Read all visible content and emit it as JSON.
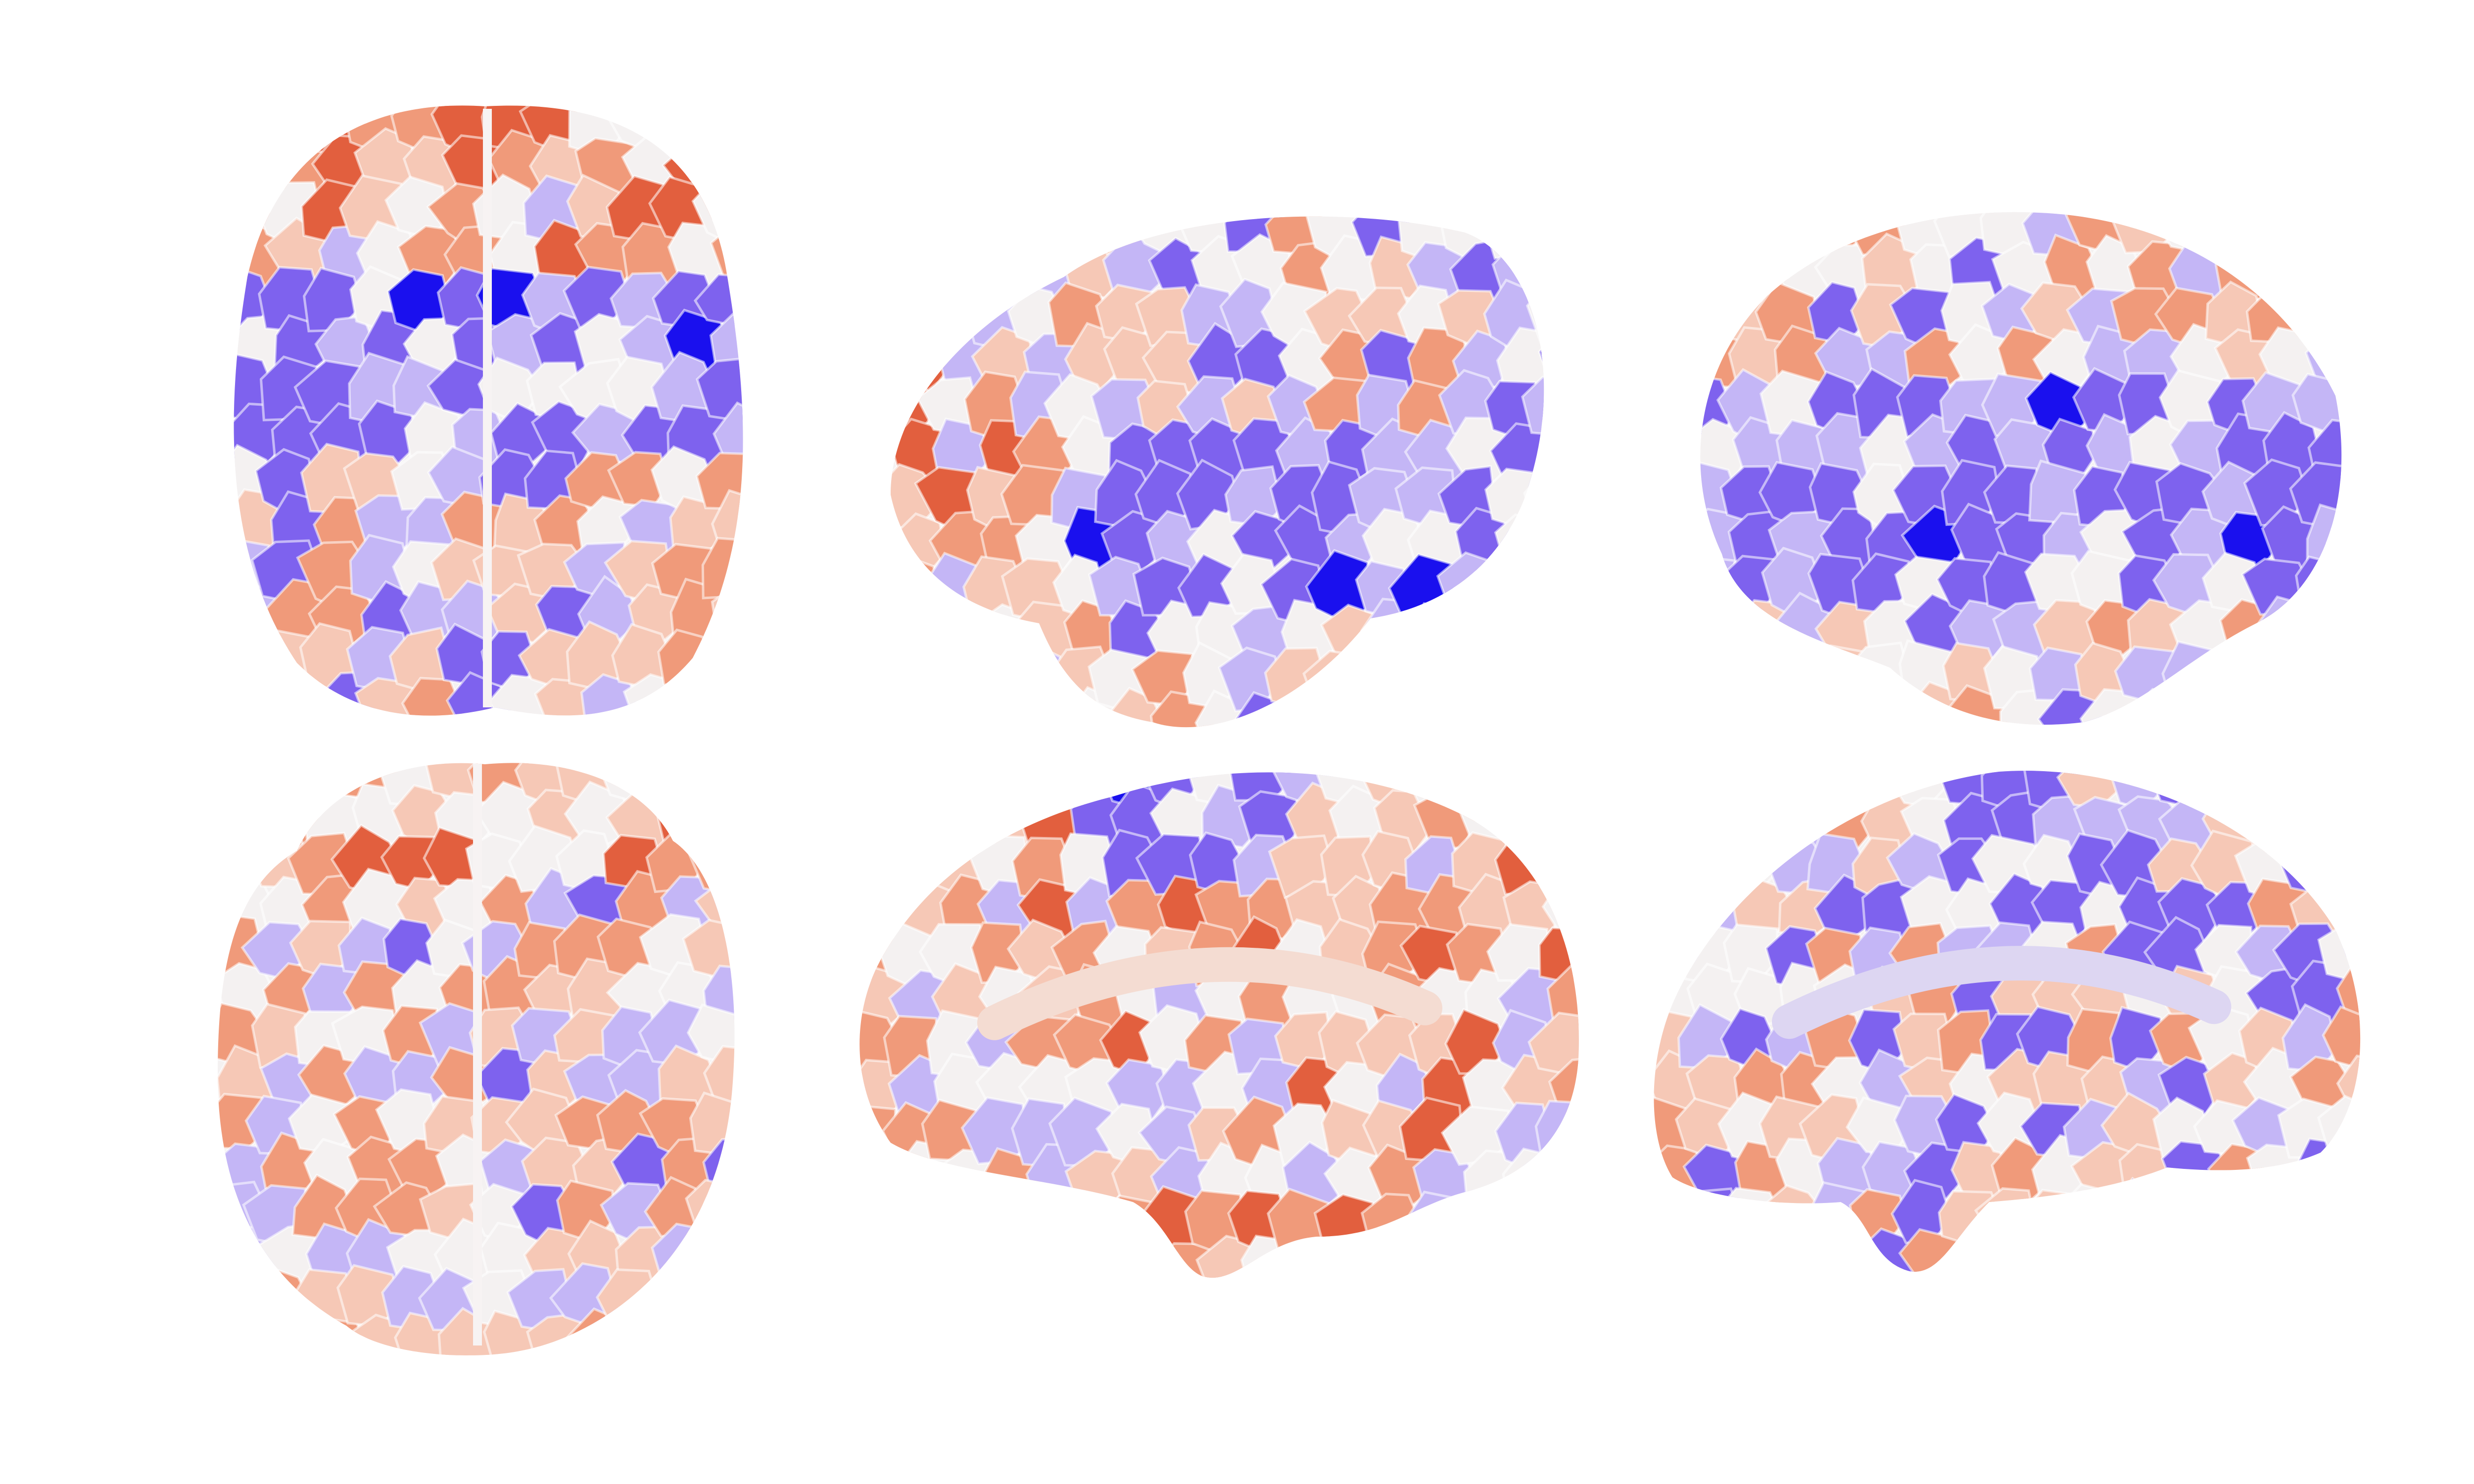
{
  "figure": {
    "background": "#ffffff",
    "colormap": {
      "negative_strong": "#1a10ee",
      "negative_mid": "#7e62ee",
      "negative_light": "#c4b6f6",
      "neutral": "#f4f1f1",
      "positive_light": "#f6c8b6",
      "positive_mid": "#f09a7a",
      "positive_strong": "#e25f3e"
    },
    "views": [
      {
        "name": "dorsal",
        "value_seed": 11,
        "shape": "top"
      },
      {
        "name": "left-lateral",
        "value_seed": 23,
        "shape": "lateral-left"
      },
      {
        "name": "right-lateral",
        "value_seed": 37,
        "shape": "lateral-right"
      },
      {
        "name": "ventral",
        "value_seed": 41,
        "shape": "bottom"
      },
      {
        "name": "left-medial",
        "value_seed": 53,
        "shape": "medial-left"
      },
      {
        "name": "right-medial",
        "value_seed": 67,
        "shape": "medial-right"
      }
    ]
  }
}
